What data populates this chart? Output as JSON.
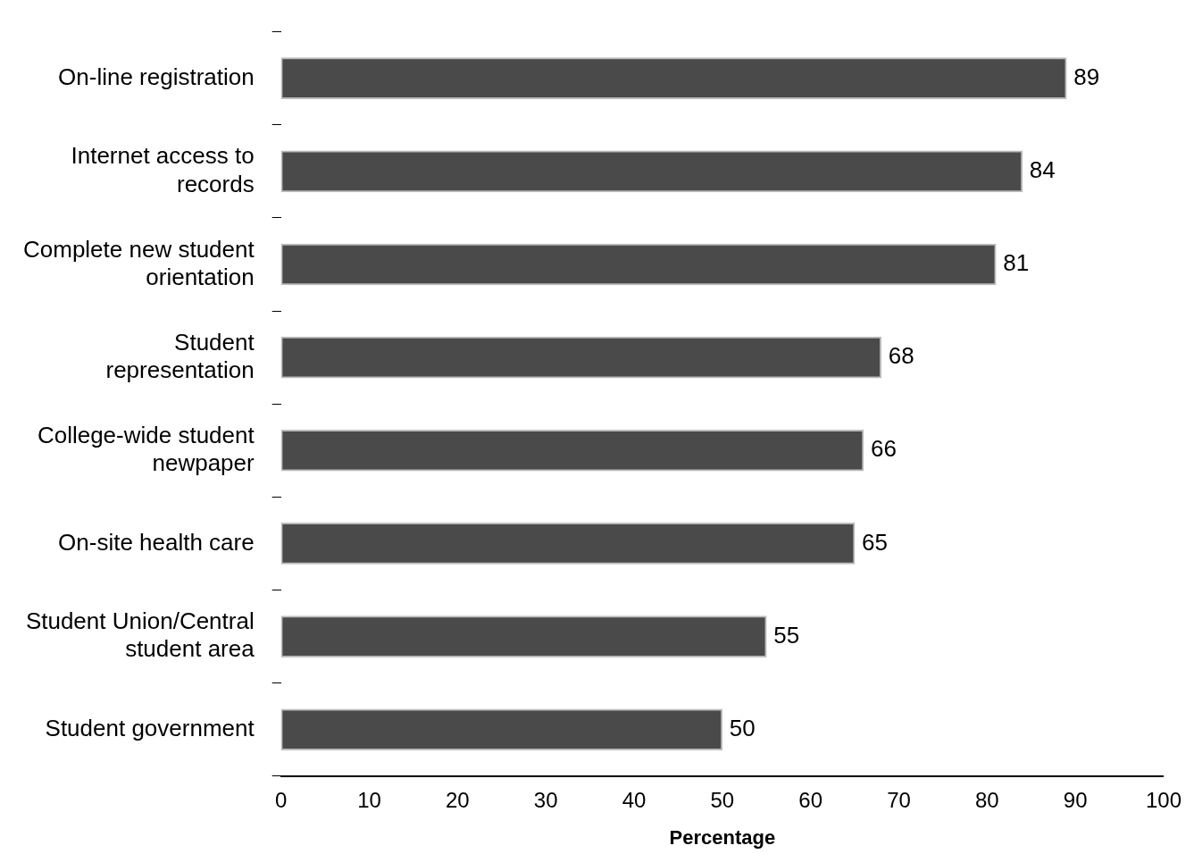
{
  "chart_data": {
    "type": "bar",
    "orientation": "horizontal",
    "xlabel": "Percentage",
    "categories": [
      "On-line registration",
      "Internet access to records",
      "Complete new student orientation",
      "Student representation",
      "College-wide student newpaper",
      "On-site health care",
      "Student Union/Central student area",
      "Student government"
    ],
    "values": [
      89,
      84,
      81,
      68,
      66,
      65,
      55,
      50
    ],
    "color": "#4a4a4a",
    "xlim": [
      0,
      100
    ],
    "xticks": [
      0,
      10,
      20,
      30,
      40,
      50,
      60,
      70,
      80,
      90,
      100
    ],
    "data_labels": true,
    "grid": false,
    "legend": false
  }
}
